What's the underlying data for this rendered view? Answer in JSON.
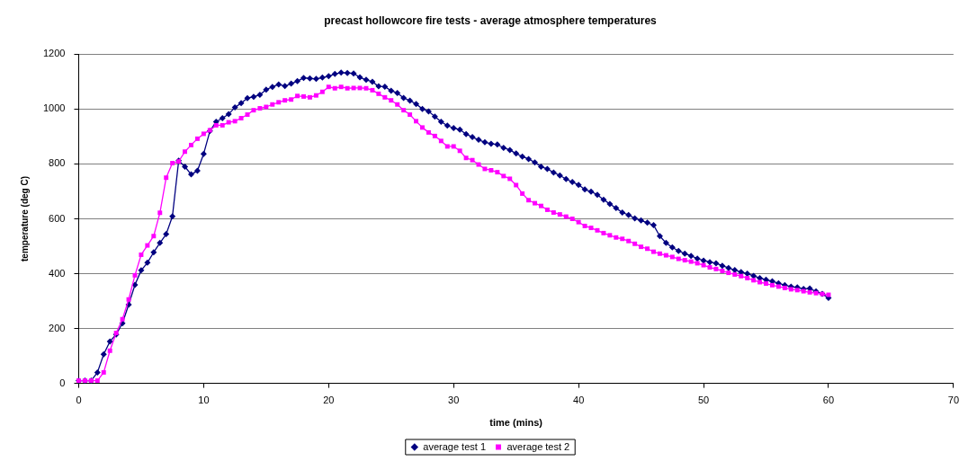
{
  "chart_data": {
    "type": "line",
    "title": "precast hollowcore fire tests - average atmosphere temperatures",
    "xlabel": "time (mins)",
    "ylabel": "temperature (deg C)",
    "x": [
      0,
      0.5,
      1,
      1.5,
      2,
      2.5,
      3,
      3.5,
      4,
      4.5,
      5,
      5.5,
      6,
      6.5,
      7,
      7.5,
      8,
      8.5,
      9,
      9.5,
      10,
      10.5,
      11,
      11.5,
      12,
      12.5,
      13,
      13.5,
      14,
      14.5,
      15,
      15.5,
      16,
      16.5,
      17,
      17.5,
      18,
      18.5,
      19,
      19.5,
      20,
      20.5,
      21,
      21.5,
      22,
      22.5,
      23,
      23.5,
      24,
      24.5,
      25,
      25.5,
      26,
      26.5,
      27,
      27.5,
      28,
      28.5,
      29,
      29.5,
      30,
      30.5,
      31,
      31.5,
      32,
      32.5,
      33,
      33.5,
      34,
      34.5,
      35,
      35.5,
      36,
      36.5,
      37,
      37.5,
      38,
      38.5,
      39,
      39.5,
      40,
      40.5,
      41,
      41.5,
      42,
      42.5,
      43,
      43.5,
      44,
      44.5,
      45,
      45.5,
      46,
      46.5,
      47,
      47.5,
      48,
      48.5,
      49,
      49.5,
      50,
      50.5,
      51,
      51.5,
      52,
      52.5,
      53,
      53.5,
      54,
      54.5,
      55,
      55.5,
      56,
      56.5,
      57,
      57.5,
      58,
      58.5,
      59,
      59.5,
      60
    ],
    "series": [
      {
        "name": "average test 1",
        "color": "#000080",
        "marker": "diamond",
        "values": [
          10,
          10,
          10,
          40,
          106,
          153,
          178,
          219,
          287,
          359,
          412,
          440,
          478,
          512,
          544,
          609,
          812,
          790,
          762,
          775,
          837,
          920,
          954,
          967,
          982,
          1006,
          1022,
          1040,
          1045,
          1052,
          1071,
          1081,
          1090,
          1084,
          1093,
          1102,
          1114,
          1112,
          1110,
          1115,
          1120,
          1128,
          1133,
          1132,
          1130,
          1116,
          1107,
          1100,
          1083,
          1082,
          1067,
          1059,
          1041,
          1031,
          1019,
          1001,
          992,
          973,
          954,
          940,
          931,
          925,
          909,
          898,
          888,
          879,
          874,
          871,
          859,
          851,
          838,
          827,
          818,
          806,
          790,
          782,
          769,
          758,
          745,
          734,
          724,
          707,
          699,
          688,
          670,
          654,
          639,
          623,
          614,
          602,
          594,
          586,
          577,
          537,
          512,
          496,
          483,
          473,
          465,
          455,
          448,
          442,
          438,
          429,
          421,
          413,
          406,
          400,
          392,
          384,
          378,
          372,
          365,
          358,
          353,
          350,
          344,
          346,
          335,
          326,
          312
        ]
      },
      {
        "name": "average test 2",
        "color": "#ff00ff",
        "marker": "square",
        "values": [
          10,
          10,
          10,
          10,
          40,
          119,
          184,
          234,
          306,
          394,
          469,
          503,
          537,
          622,
          750,
          803,
          809,
          845,
          869,
          892,
          910,
          923,
          941,
          941,
          952,
          956,
          967,
          980,
          996,
          1003,
          1008,
          1017,
          1025,
          1032,
          1035,
          1048,
          1046,
          1043,
          1050,
          1063,
          1081,
          1076,
          1081,
          1076,
          1077,
          1077,
          1076,
          1069,
          1056,
          1043,
          1032,
          1017,
          996,
          980,
          956,
          933,
          915,
          902,
          884,
          864,
          864,
          848,
          822,
          814,
          798,
          782,
          777,
          770,
          756,
          746,
          723,
          692,
          668,
          657,
          647,
          633,
          623,
          616,
          608,
          600,
          588,
          574,
          567,
          558,
          548,
          540,
          532,
          527,
          519,
          509,
          498,
          491,
          480,
          473,
          467,
          461,
          454,
          449,
          444,
          438,
          431,
          423,
          417,
          410,
          403,
          397,
          391,
          384,
          376,
          369,
          364,
          358,
          353,
          348,
          343,
          340,
          336,
          332,
          329,
          326,
          323
        ]
      }
    ],
    "xlim": [
      0,
      70
    ],
    "xticks": [
      0,
      10,
      20,
      30,
      40,
      50,
      60,
      70
    ],
    "ylim": [
      0,
      1200
    ],
    "yticks": [
      0,
      200,
      400,
      600,
      800,
      1000,
      1200
    ],
    "grid": "y",
    "legend": "bottom",
    "line_style": "solid"
  }
}
